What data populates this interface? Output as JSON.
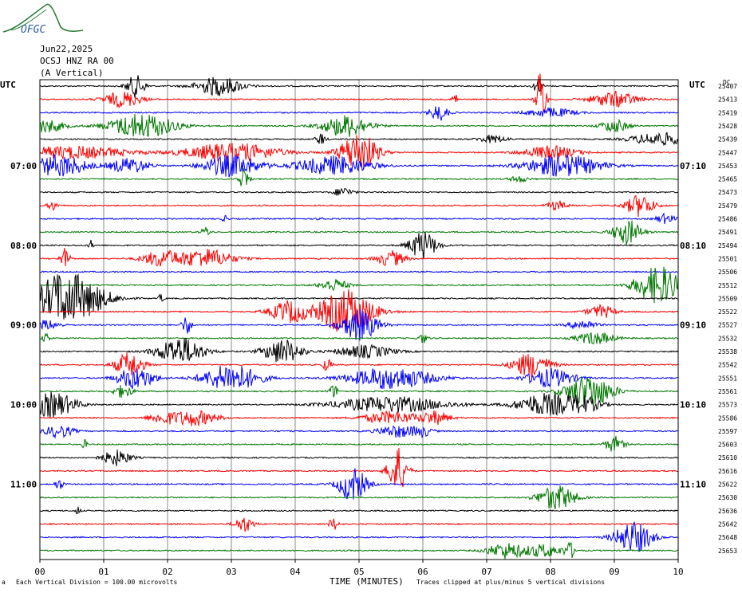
{
  "header": {
    "date": "Jun22,2025",
    "station": "OCSJ HNZ RA 00",
    "component": "(A Vertical)",
    "logo_text": "OFGC",
    "logo_color": "#2f7f3a"
  },
  "footer": {
    "division": "Each Vertical Division =  100.00 microvolts",
    "xlabel": "TIME (MINUTES)",
    "clip_note": "Traces clipped at plus/minus 5 vertical divisions",
    "mark": "a"
  },
  "chart_data": {
    "type": "line",
    "title": "OCSJ HNZ RA 00 (A Vertical)",
    "xlabel": "TIME (MINUTES)",
    "xlim": [
      0,
      10
    ],
    "x_ticks": [
      "00",
      "01",
      "02",
      "03",
      "04",
      "05",
      "06",
      "07",
      "08",
      "09",
      "10"
    ],
    "left_axis_label": "UTC",
    "right_axis_label": "UTC",
    "dc_header": "DC",
    "grid": "vertical lines every minute",
    "trace_colors": [
      "#000000",
      "#ff0000",
      "#0000ff",
      "#007700"
    ],
    "trace_count": 36,
    "left_times": [
      {
        "trace": 6,
        "label": "07:00"
      },
      {
        "trace": 12,
        "label": "08:00"
      },
      {
        "trace": 18,
        "label": "09:00"
      },
      {
        "trace": 24,
        "label": "10:00"
      },
      {
        "trace": 30,
        "label": "11:00"
      }
    ],
    "right_times": [
      {
        "trace": 6,
        "label": "07:10"
      },
      {
        "trace": 12,
        "label": "08:10"
      },
      {
        "trace": 18,
        "label": "09:10"
      },
      {
        "trace": 24,
        "label": "10:10"
      },
      {
        "trace": 30,
        "label": "11:10"
      }
    ],
    "dc_values": [
      "25407",
      "25413",
      "25419",
      "25428",
      "25439",
      "25447",
      "25453",
      "25465",
      "25473",
      "25479",
      "25486",
      "25491",
      "25494",
      "25501",
      "25506",
      "25512",
      "25509",
      "25522",
      "25527",
      "25532",
      "25538",
      "25542",
      "25551",
      "25561",
      "25573",
      "25586",
      "25597",
      "25603",
      "25610",
      "25616",
      "25622",
      "25630",
      "25636",
      "25642",
      "25648",
      "25653"
    ],
    "events": [
      [
        [
          1.5,
          0.2,
          14
        ],
        [
          2.8,
          0.5,
          12
        ],
        [
          7.8,
          0.1,
          8
        ]
      ],
      [
        [
          1.3,
          0.4,
          10
        ],
        [
          6.5,
          0.05,
          10
        ],
        [
          7.85,
          0.1,
          40
        ],
        [
          9.0,
          0.5,
          10
        ]
      ],
      [
        [
          6.25,
          0.2,
          10
        ],
        [
          8.0,
          0.5,
          6
        ]
      ],
      [
        [
          0.1,
          0.4,
          8
        ],
        [
          1.6,
          0.7,
          16
        ],
        [
          4.8,
          0.5,
          14
        ],
        [
          9.0,
          0.3,
          8
        ]
      ],
      [
        [
          4.4,
          0.1,
          8
        ],
        [
          7.1,
          0.3,
          5
        ],
        [
          9.7,
          0.6,
          8
        ]
      ],
      [
        [
          0.5,
          1.2,
          8
        ],
        [
          3.0,
          1.0,
          12
        ],
        [
          5.0,
          0.4,
          26
        ],
        [
          8.0,
          0.6,
          8
        ]
      ],
      [
        [
          0.3,
          0.6,
          14
        ],
        [
          1.4,
          0.4,
          10
        ],
        [
          3.0,
          0.6,
          14
        ],
        [
          4.6,
          0.8,
          12
        ],
        [
          8.2,
          0.8,
          14
        ]
      ],
      [
        [
          3.2,
          0.1,
          16
        ],
        [
          7.5,
          0.2,
          4
        ]
      ],
      [
        [
          4.75,
          0.2,
          6
        ]
      ],
      [
        [
          0.2,
          0.1,
          6
        ],
        [
          8.1,
          0.2,
          6
        ],
        [
          9.4,
          0.3,
          14
        ]
      ],
      [
        [
          2.9,
          0.05,
          6
        ],
        [
          4.4,
          0.05,
          6
        ],
        [
          9.8,
          0.2,
          6
        ]
      ],
      [
        [
          2.6,
          0.1,
          6
        ],
        [
          9.2,
          0.3,
          16
        ]
      ],
      [
        [
          0.8,
          0.05,
          6
        ],
        [
          6.0,
          0.3,
          18
        ]
      ],
      [
        [
          0.4,
          0.1,
          14
        ],
        [
          1.9,
          0.4,
          10
        ],
        [
          2.6,
          0.6,
          12
        ],
        [
          5.5,
          0.3,
          10
        ]
      ],
      [],
      [
        [
          4.6,
          0.3,
          8
        ],
        [
          9.7,
          0.5,
          24
        ]
      ],
      [
        [
          0.3,
          0.5,
          26
        ],
        [
          0.7,
          0.6,
          18
        ],
        [
          1.9,
          0.05,
          6
        ]
      ],
      [
        [
          3.9,
          0.4,
          14
        ],
        [
          4.8,
          0.6,
          28
        ],
        [
          8.8,
          0.3,
          8
        ]
      ],
      [
        [
          0.1,
          0.3,
          6
        ],
        [
          2.3,
          0.1,
          12
        ],
        [
          5.0,
          0.4,
          20
        ],
        [
          8.5,
          0.3,
          6
        ]
      ],
      [
        [
          0.1,
          0.1,
          5
        ],
        [
          6.0,
          0.1,
          6
        ],
        [
          8.7,
          0.4,
          8
        ]
      ],
      [
        [
          2.2,
          0.5,
          18
        ],
        [
          3.8,
          0.4,
          16
        ],
        [
          5.1,
          0.6,
          8
        ]
      ],
      [
        [
          1.4,
          0.3,
          16
        ],
        [
          4.5,
          0.1,
          8
        ],
        [
          7.7,
          0.4,
          16
        ]
      ],
      [
        [
          1.5,
          0.4,
          14
        ],
        [
          3.0,
          0.6,
          18
        ],
        [
          5.5,
          0.9,
          14
        ],
        [
          8.0,
          0.5,
          12
        ]
      ],
      [
        [
          1.3,
          0.2,
          8
        ],
        [
          4.6,
          0.1,
          8
        ],
        [
          8.6,
          0.5,
          22
        ]
      ],
      [
        [
          0.2,
          0.5,
          16
        ],
        [
          5.5,
          1.2,
          10
        ],
        [
          7.9,
          0.6,
          14
        ],
        [
          8.5,
          0.4,
          10
        ]
      ],
      [
        [
          1.9,
          0.3,
          6
        ],
        [
          2.4,
          0.5,
          10
        ],
        [
          5.5,
          0.6,
          8
        ],
        [
          6.2,
          0.3,
          8
        ]
      ],
      [
        [
          0.3,
          0.3,
          8
        ],
        [
          5.6,
          0.4,
          8
        ],
        [
          6.0,
          0.2,
          6
        ]
      ],
      [
        [
          0.7,
          0.05,
          6
        ],
        [
          9.0,
          0.2,
          10
        ]
      ],
      [
        [
          1.2,
          0.3,
          10
        ]
      ],
      [
        [
          5.6,
          0.2,
          30
        ]
      ],
      [
        [
          0.3,
          0.1,
          6
        ],
        [
          4.9,
          0.3,
          22
        ]
      ],
      [
        [
          8.1,
          0.4,
          16
        ]
      ],
      [
        [
          0.6,
          0.05,
          6
        ]
      ],
      [
        [
          3.2,
          0.2,
          10
        ],
        [
          4.6,
          0.1,
          8
        ]
      ],
      [
        [
          9.3,
          0.4,
          20
        ]
      ],
      [
        [
          7.3,
          0.4,
          10
        ],
        [
          7.9,
          0.4,
          8
        ],
        [
          8.3,
          0.1,
          10
        ]
      ]
    ]
  }
}
